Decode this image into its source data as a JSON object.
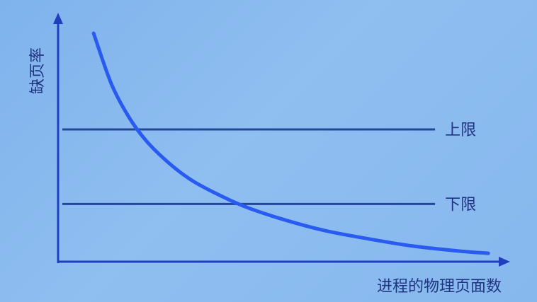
{
  "chart_data": {
    "type": "line",
    "title": "",
    "xlabel": "进程的物理页面数",
    "ylabel": "缺页率",
    "xlim": [
      0,
      100
    ],
    "ylim": [
      0,
      100
    ],
    "grid": false,
    "series": [
      {
        "x": [
          8,
          12,
          16,
          20,
          25,
          30,
          36,
          42,
          50,
          60,
          70,
          80,
          90,
          97
        ],
        "y": [
          95,
          74,
          60,
          50,
          41,
          34,
          28,
          23,
          18,
          13,
          9.5,
          6.5,
          4.5,
          3.5
        ]
      }
    ],
    "reference_lines": [
      {
        "label": "上限",
        "y": 55
      },
      {
        "label": "下限",
        "y": 24
      }
    ]
  }
}
